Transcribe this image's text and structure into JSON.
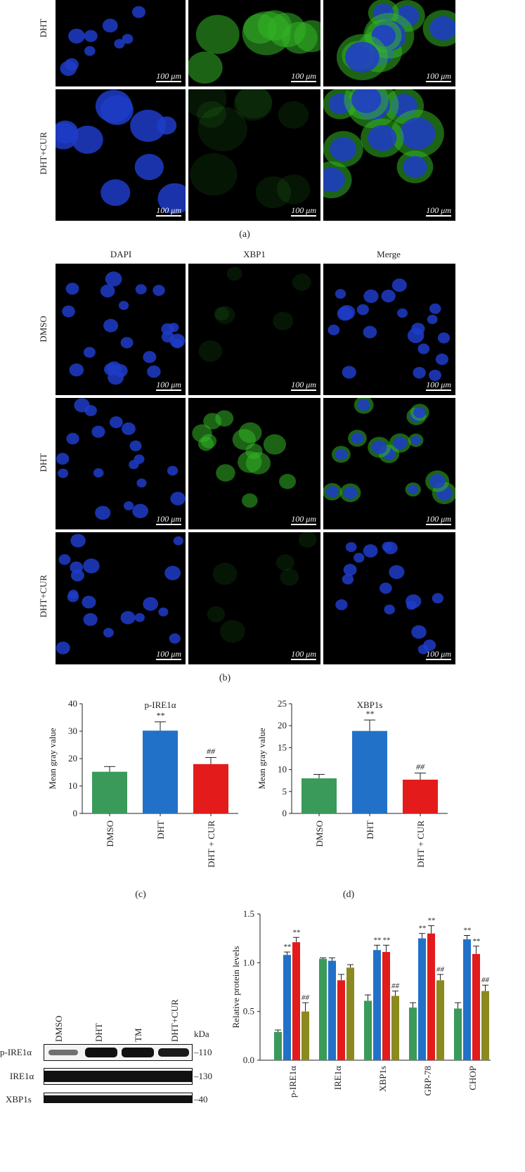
{
  "panel_a": {
    "label": "(a)",
    "rows": [
      "DHT",
      "DHT+CUR"
    ],
    "scale_bar": "100 μm"
  },
  "panel_b": {
    "label": "(b)",
    "columns": [
      "DAPI",
      "XBP1",
      "Merge"
    ],
    "rows": [
      "DMSO",
      "DHT",
      "DHT+CUR"
    ],
    "scale_bar": "100 μm"
  },
  "panel_c": {
    "label": "(c)"
  },
  "panel_d": {
    "label": "(d)"
  },
  "colors": {
    "dmso": "#3a9a5a",
    "dht": "#2271c8",
    "tm": "#e31b1b",
    "dht_cur": "#8a8a1e",
    "nuclei": "#1f3cc8",
    "stain": "#33b526"
  },
  "chart_data": [
    {
      "type": "bar",
      "title": "p-IRE1α",
      "ylabel": "Mean gray value",
      "xlabel": "",
      "categories": [
        "DMSO",
        "DHT",
        "DHT + CUR"
      ],
      "values": [
        15.2,
        30.2,
        18.0
      ],
      "errors": [
        1.9,
        3.2,
        2.4
      ],
      "annotations": [
        "",
        "**",
        "##"
      ],
      "ylim": [
        0,
        40
      ],
      "yticks": [
        0,
        10,
        20,
        30,
        40
      ],
      "grid": false
    },
    {
      "type": "bar",
      "title": "XBP1s",
      "ylabel": "Mean gray value",
      "xlabel": "",
      "categories": [
        "DMSO",
        "DHT",
        "DHT + CUR"
      ],
      "values": [
        8.0,
        18.8,
        7.7
      ],
      "errors": [
        0.9,
        2.5,
        1.5
      ],
      "annotations": [
        "",
        "**",
        "##"
      ],
      "ylim": [
        0,
        25
      ],
      "yticks": [
        0,
        5,
        10,
        15,
        20,
        25
      ],
      "grid": false
    },
    {
      "type": "bar",
      "title": "",
      "ylabel": "Relative protein levels",
      "xlabel": "",
      "categories": [
        "p-IRE1α",
        "IRE1α",
        "XBP1s",
        "GRP-78",
        "CHOP"
      ],
      "series": [
        {
          "values": [
            0.29,
            1.04,
            0.61,
            0.54,
            0.53
          ],
          "errors": [
            0.02,
            0.01,
            0.06,
            0.05,
            0.06
          ],
          "annotations": [
            "",
            "",
            "",
            "",
            ""
          ]
        },
        {
          "values": [
            1.08,
            1.02,
            1.13,
            1.25,
            1.24
          ],
          "errors": [
            0.03,
            0.03,
            0.05,
            0.05,
            0.04
          ],
          "annotations": [
            "**",
            "",
            "**",
            "**",
            "**"
          ]
        },
        {
          "values": [
            1.21,
            0.82,
            1.11,
            1.3,
            1.09
          ],
          "errors": [
            0.05,
            0.06,
            0.07,
            0.08,
            0.08
          ],
          "annotations": [
            "**",
            "",
            "**",
            "**",
            "**"
          ]
        },
        {
          "values": [
            0.5,
            0.95,
            0.66,
            0.82,
            0.71
          ],
          "errors": [
            0.09,
            0.03,
            0.05,
            0.06,
            0.06
          ],
          "annotations": [
            "##",
            "",
            "##",
            "##",
            "##"
          ]
        }
      ],
      "ylim": [
        0,
        1.5
      ],
      "yticks": [
        "0.0",
        "0.5",
        "1.0",
        "1.5"
      ],
      "grid": false
    }
  ],
  "western_blot": {
    "lanes": [
      "DMSO",
      "DHT",
      "TM",
      "DHT+CUR"
    ],
    "unit": "kDa",
    "rows": [
      {
        "label": "p-IRE1α",
        "mw": "–110"
      },
      {
        "label": "IRE1α",
        "mw": "–130"
      },
      {
        "label": "XBP1s",
        "mw": "–40"
      }
    ]
  }
}
